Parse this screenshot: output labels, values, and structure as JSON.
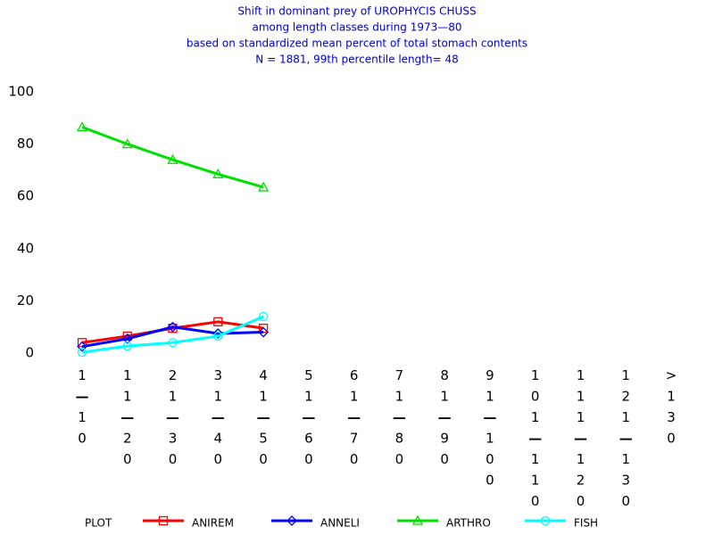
{
  "chart_data": {
    "type": "line",
    "title": [
      "Shift in dominant prey of UROPHYCIS CHUSS",
      "among length classes during 1973—80",
      "based on standardized mean percent of  total stomach contents",
      "N =  1881, 99th percentile   length= 48"
    ],
    "categories": [
      "1—10",
      "11—20",
      "21—30",
      "31—40",
      "41—50",
      "51—60",
      "61—70",
      "71—80",
      "81—90",
      "91—100",
      "101—110",
      "111—120",
      "121—130",
      ">130"
    ],
    "series": [
      {
        "name": "ANIREM",
        "color": "#ff0000",
        "marker": "square",
        "values": [
          4,
          6.5,
          9.5,
          12,
          9.5,
          null,
          null,
          null,
          null,
          null,
          null,
          null,
          null,
          null
        ]
      },
      {
        "name": "ANNELI",
        "color": "#0000ff",
        "marker": "diamond",
        "values": [
          2.5,
          5.5,
          10,
          7.5,
          8,
          null,
          null,
          null,
          null,
          null,
          null,
          null,
          null,
          null
        ]
      },
      {
        "name": "ARTHRO",
        "color": "#00e000",
        "marker": "triangle",
        "values": [
          86.5,
          80,
          74,
          68.5,
          63.5,
          null,
          null,
          null,
          null,
          null,
          null,
          null,
          null,
          null
        ]
      },
      {
        "name": "FISH",
        "color": "#00ffff",
        "marker": "circle",
        "values": [
          0.3,
          2.7,
          4,
          6.5,
          14,
          null,
          null,
          null,
          null,
          null,
          null,
          null,
          null,
          null
        ]
      }
    ],
    "legend_title": "PLOT",
    "ylim": [
      0,
      100
    ],
    "yticks": [
      0,
      20,
      40,
      60,
      80,
      100
    ]
  }
}
